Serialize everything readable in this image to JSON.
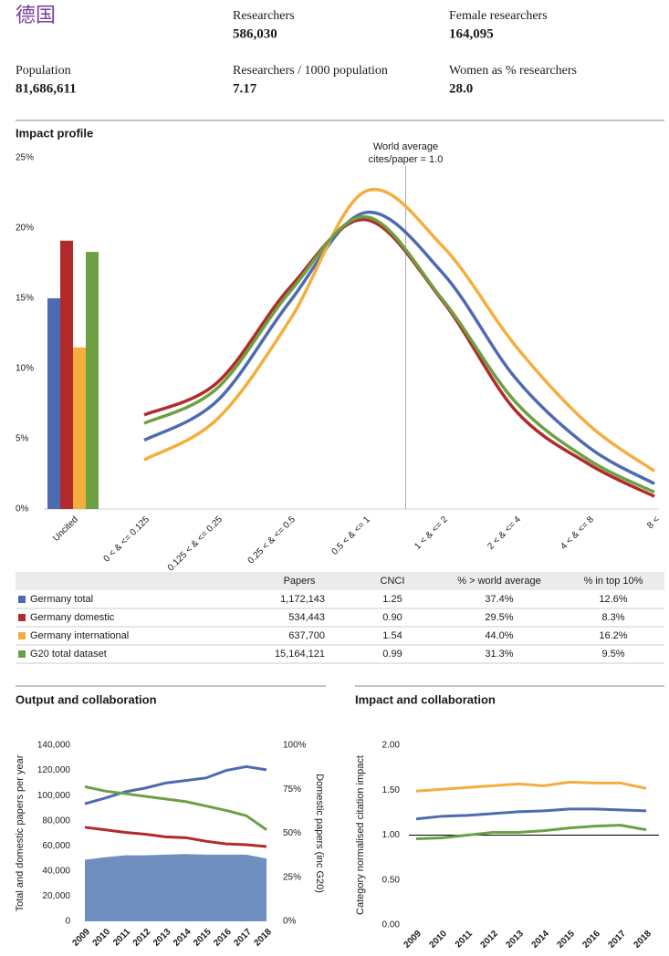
{
  "header": {
    "title": "德国",
    "stats": [
      {
        "label": "Researchers",
        "value": "586,030"
      },
      {
        "label": "Female researchers",
        "value": "164,095"
      },
      {
        "label": "Population",
        "value": "81,686,611"
      },
      {
        "label": "Researchers / 1000 population",
        "value": "7.17"
      },
      {
        "label": "Women as % researchers",
        "value": "28.0"
      }
    ]
  },
  "chart_data": [
    {
      "type": "combo",
      "title": "Impact profile",
      "categories": [
        "Uncited",
        "0 < & <= 0.125",
        "0.125 < & <= 0.25",
        "0.25 < & <= 0.5",
        "0.5 < & <= 1",
        "1 < & <= 2",
        "2 < & <= 4",
        "4 < & <= 8",
        "8 <"
      ],
      "ylim": [
        0,
        25
      ],
      "yticks": [
        {
          "value": 0,
          "label": "0%"
        },
        {
          "value": 5,
          "label": "5%"
        },
        {
          "value": 10,
          "label": "10%"
        },
        {
          "value": 15,
          "label": "15%"
        },
        {
          "value": 20,
          "label": "20%"
        },
        {
          "value": 25,
          "label": "25%"
        }
      ],
      "annotation": [
        "World average",
        "cites/paper = 1.0"
      ],
      "series": [
        {
          "color": "#4e6bb1",
          "values": [
            15.0,
            4.9,
            7.7,
            14.8,
            21.1,
            16.8,
            9.3,
            4.4,
            1.8
          ]
        },
        {
          "color": "#b22a2a",
          "values": [
            19.1,
            6.7,
            9.0,
            15.8,
            20.6,
            14.8,
            7.0,
            3.2,
            0.9
          ]
        },
        {
          "color": "#f4ae3d",
          "values": [
            11.5,
            3.5,
            6.4,
            13.5,
            22.6,
            18.7,
            11.6,
            6.0,
            2.7
          ]
        },
        {
          "color": "#6da043",
          "values": [
            18.3,
            6.1,
            8.6,
            15.5,
            20.8,
            14.9,
            7.6,
            3.5,
            1.2
          ]
        }
      ]
    },
    {
      "type": "line",
      "title": "Output and collaboration",
      "categories": [
        "2009",
        "2010",
        "2011",
        "2012",
        "2013",
        "2014",
        "2015",
        "2016",
        "2017",
        "2018"
      ],
      "ylabel": "Total and domestic papers per year",
      "y2label": "Domestic papers (inc G20)",
      "ylim": [
        0,
        140000
      ],
      "yticks": [
        {
          "value": 0,
          "label": "0"
        },
        {
          "value": 20000,
          "label": "20,000"
        },
        {
          "value": 40000,
          "label": "40,000"
        },
        {
          "value": 60000,
          "label": "60,000"
        },
        {
          "value": 80000,
          "label": "80,000"
        },
        {
          "value": 100000,
          "label": "100,000"
        },
        {
          "value": 120000,
          "label": "120,000"
        },
        {
          "value": 140000,
          "label": "140,000"
        }
      ],
      "y2lim": [
        0,
        100
      ],
      "y2ticks": [
        {
          "value": 0,
          "label": "0%"
        },
        {
          "value": 25,
          "label": "25%"
        },
        {
          "value": 50,
          "label": "50%"
        },
        {
          "value": 75,
          "label": "75%"
        },
        {
          "value": 100,
          "label": "100%"
        }
      ],
      "series": [
        {
          "type": "area",
          "color": "#6e8fbf",
          "values": [
            49000,
            51000,
            52500,
            52500,
            53000,
            53500,
            53000,
            53000,
            53000,
            50000
          ]
        },
        {
          "color": "#4e6bb1",
          "values": [
            93500,
            98000,
            103000,
            106000,
            110000,
            112000,
            114000,
            120000,
            123000,
            120500
          ]
        },
        {
          "color": "#b22a2a",
          "axis": "y2",
          "values": [
            53.4,
            52.0,
            50.5,
            49.5,
            48.0,
            47.5,
            45.5,
            44.0,
            43.5,
            42.5
          ]
        },
        {
          "color": "#6da043",
          "axis": "y2",
          "values": [
            76.5,
            74.0,
            72.5,
            71.0,
            69.5,
            68.0,
            65.5,
            63.0,
            60.0,
            52.0
          ]
        }
      ]
    },
    {
      "type": "line",
      "title": "Impact and collaboration",
      "categories": [
        "2009",
        "2010",
        "2011",
        "2012",
        "2013",
        "2014",
        "2015",
        "2016",
        "2017",
        "2018"
      ],
      "ylabel": "Category normalised citation impact",
      "ylim": [
        0,
        2
      ],
      "yticks": [
        {
          "value": 0,
          "label": "0.00"
        },
        {
          "value": 0.5,
          "label": "0.50"
        },
        {
          "value": 1,
          "label": "1.00"
        },
        {
          "value": 1.5,
          "label": "1.50"
        },
        {
          "value": 2,
          "label": "2.00"
        }
      ],
      "reference_line": 1,
      "series": [
        {
          "color": "#f4ae3d",
          "values": [
            1.49,
            1.51,
            1.53,
            1.55,
            1.57,
            1.55,
            1.59,
            1.58,
            1.58,
            1.52
          ]
        },
        {
          "color": "#4e6bb1",
          "values": [
            1.18,
            1.21,
            1.22,
            1.24,
            1.26,
            1.27,
            1.29,
            1.29,
            1.28,
            1.27
          ]
        },
        {
          "color": "#6da043",
          "values": [
            0.96,
            0.97,
            1.0,
            1.03,
            1.03,
            1.05,
            1.08,
            1.1,
            1.11,
            1.06
          ]
        }
      ]
    }
  ],
  "table": {
    "columns": [
      "Papers",
      "CNCI",
      "% > world average",
      "% in top 10%"
    ],
    "rows": [
      {
        "color": "#4e6bb1",
        "cells": [
          "Germany total",
          "1,172,143",
          "1.25",
          "37.4%",
          "12.6%"
        ]
      },
      {
        "color": "#b22a2a",
        "cells": [
          "Germany domestic",
          "534,443",
          "0.90",
          "29.5%",
          "8.3%"
        ]
      },
      {
        "color": "#f4ae3d",
        "cells": [
          "Germany international",
          "637,700",
          "1.54",
          "44.0%",
          "16.2%"
        ]
      },
      {
        "color": "#6da043",
        "cells": [
          "G20 total dataset",
          "15,164,121",
          "0.99",
          "31.3%",
          "9.5%"
        ]
      }
    ]
  }
}
